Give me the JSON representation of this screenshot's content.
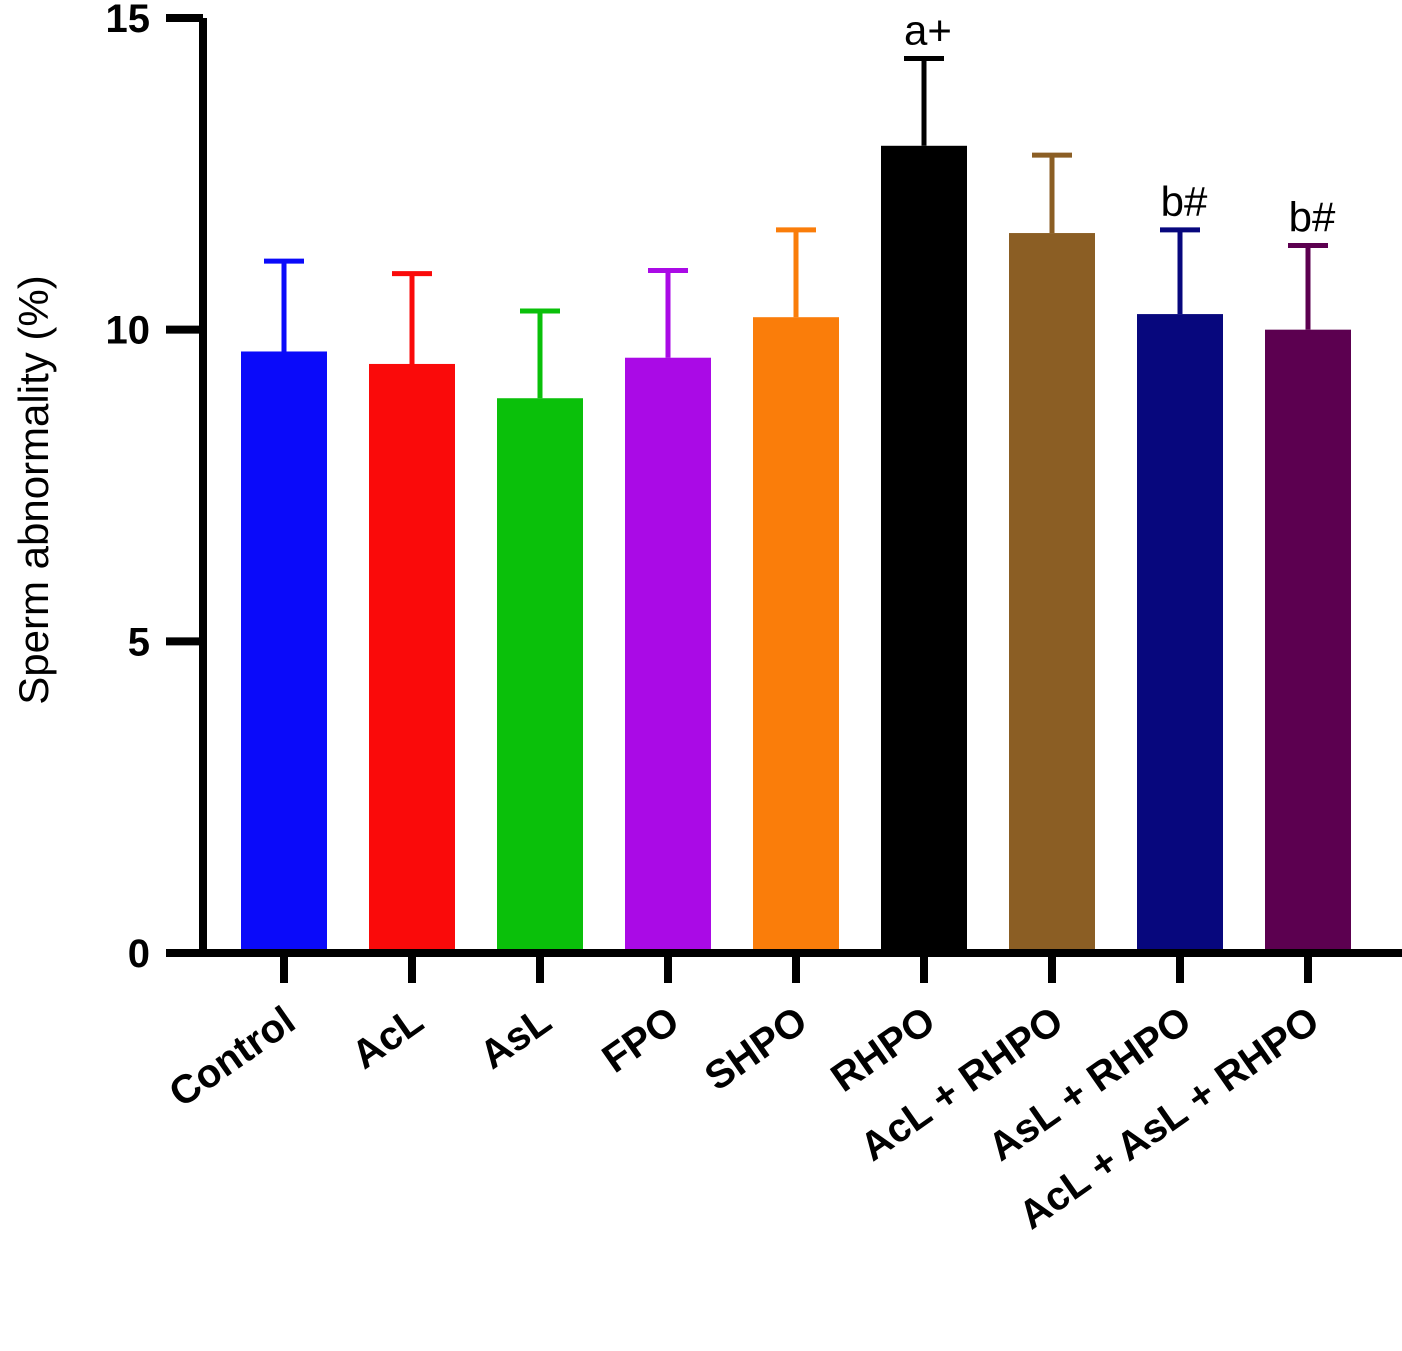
{
  "chart_data": {
    "type": "bar",
    "title": "",
    "xlabel": "",
    "ylabel": "Sperm abnormality (%)",
    "ylim": [
      0,
      15
    ],
    "yticks": [
      0,
      5,
      10,
      15
    ],
    "ytick_labels": [
      "0",
      "5",
      "10",
      "15"
    ],
    "grid": false,
    "categories": [
      "Control",
      "AcL",
      "AsL",
      "FPO",
      "SHPO",
      "RHPO",
      "AcL + RHPO",
      "AsL + RHPO",
      "AcL + AsL + RHPO"
    ],
    "values": [
      9.65,
      9.45,
      8.9,
      9.55,
      10.2,
      12.95,
      11.55,
      10.25,
      10.0
    ],
    "errors": [
      1.45,
      1.45,
      1.4,
      1.4,
      1.4,
      1.4,
      1.25,
      1.35,
      1.35
    ],
    "colors": [
      "#0a0afa",
      "#fa0a0a",
      "#0ac00a",
      "#aa0ae6",
      "#fa7d0a",
      "#000000",
      "#8b5e24",
      "#07077d",
      "#5c0050"
    ],
    "annotations": [
      "",
      "",
      "",
      "",
      "",
      "a+",
      "",
      "b#",
      "b#"
    ]
  }
}
